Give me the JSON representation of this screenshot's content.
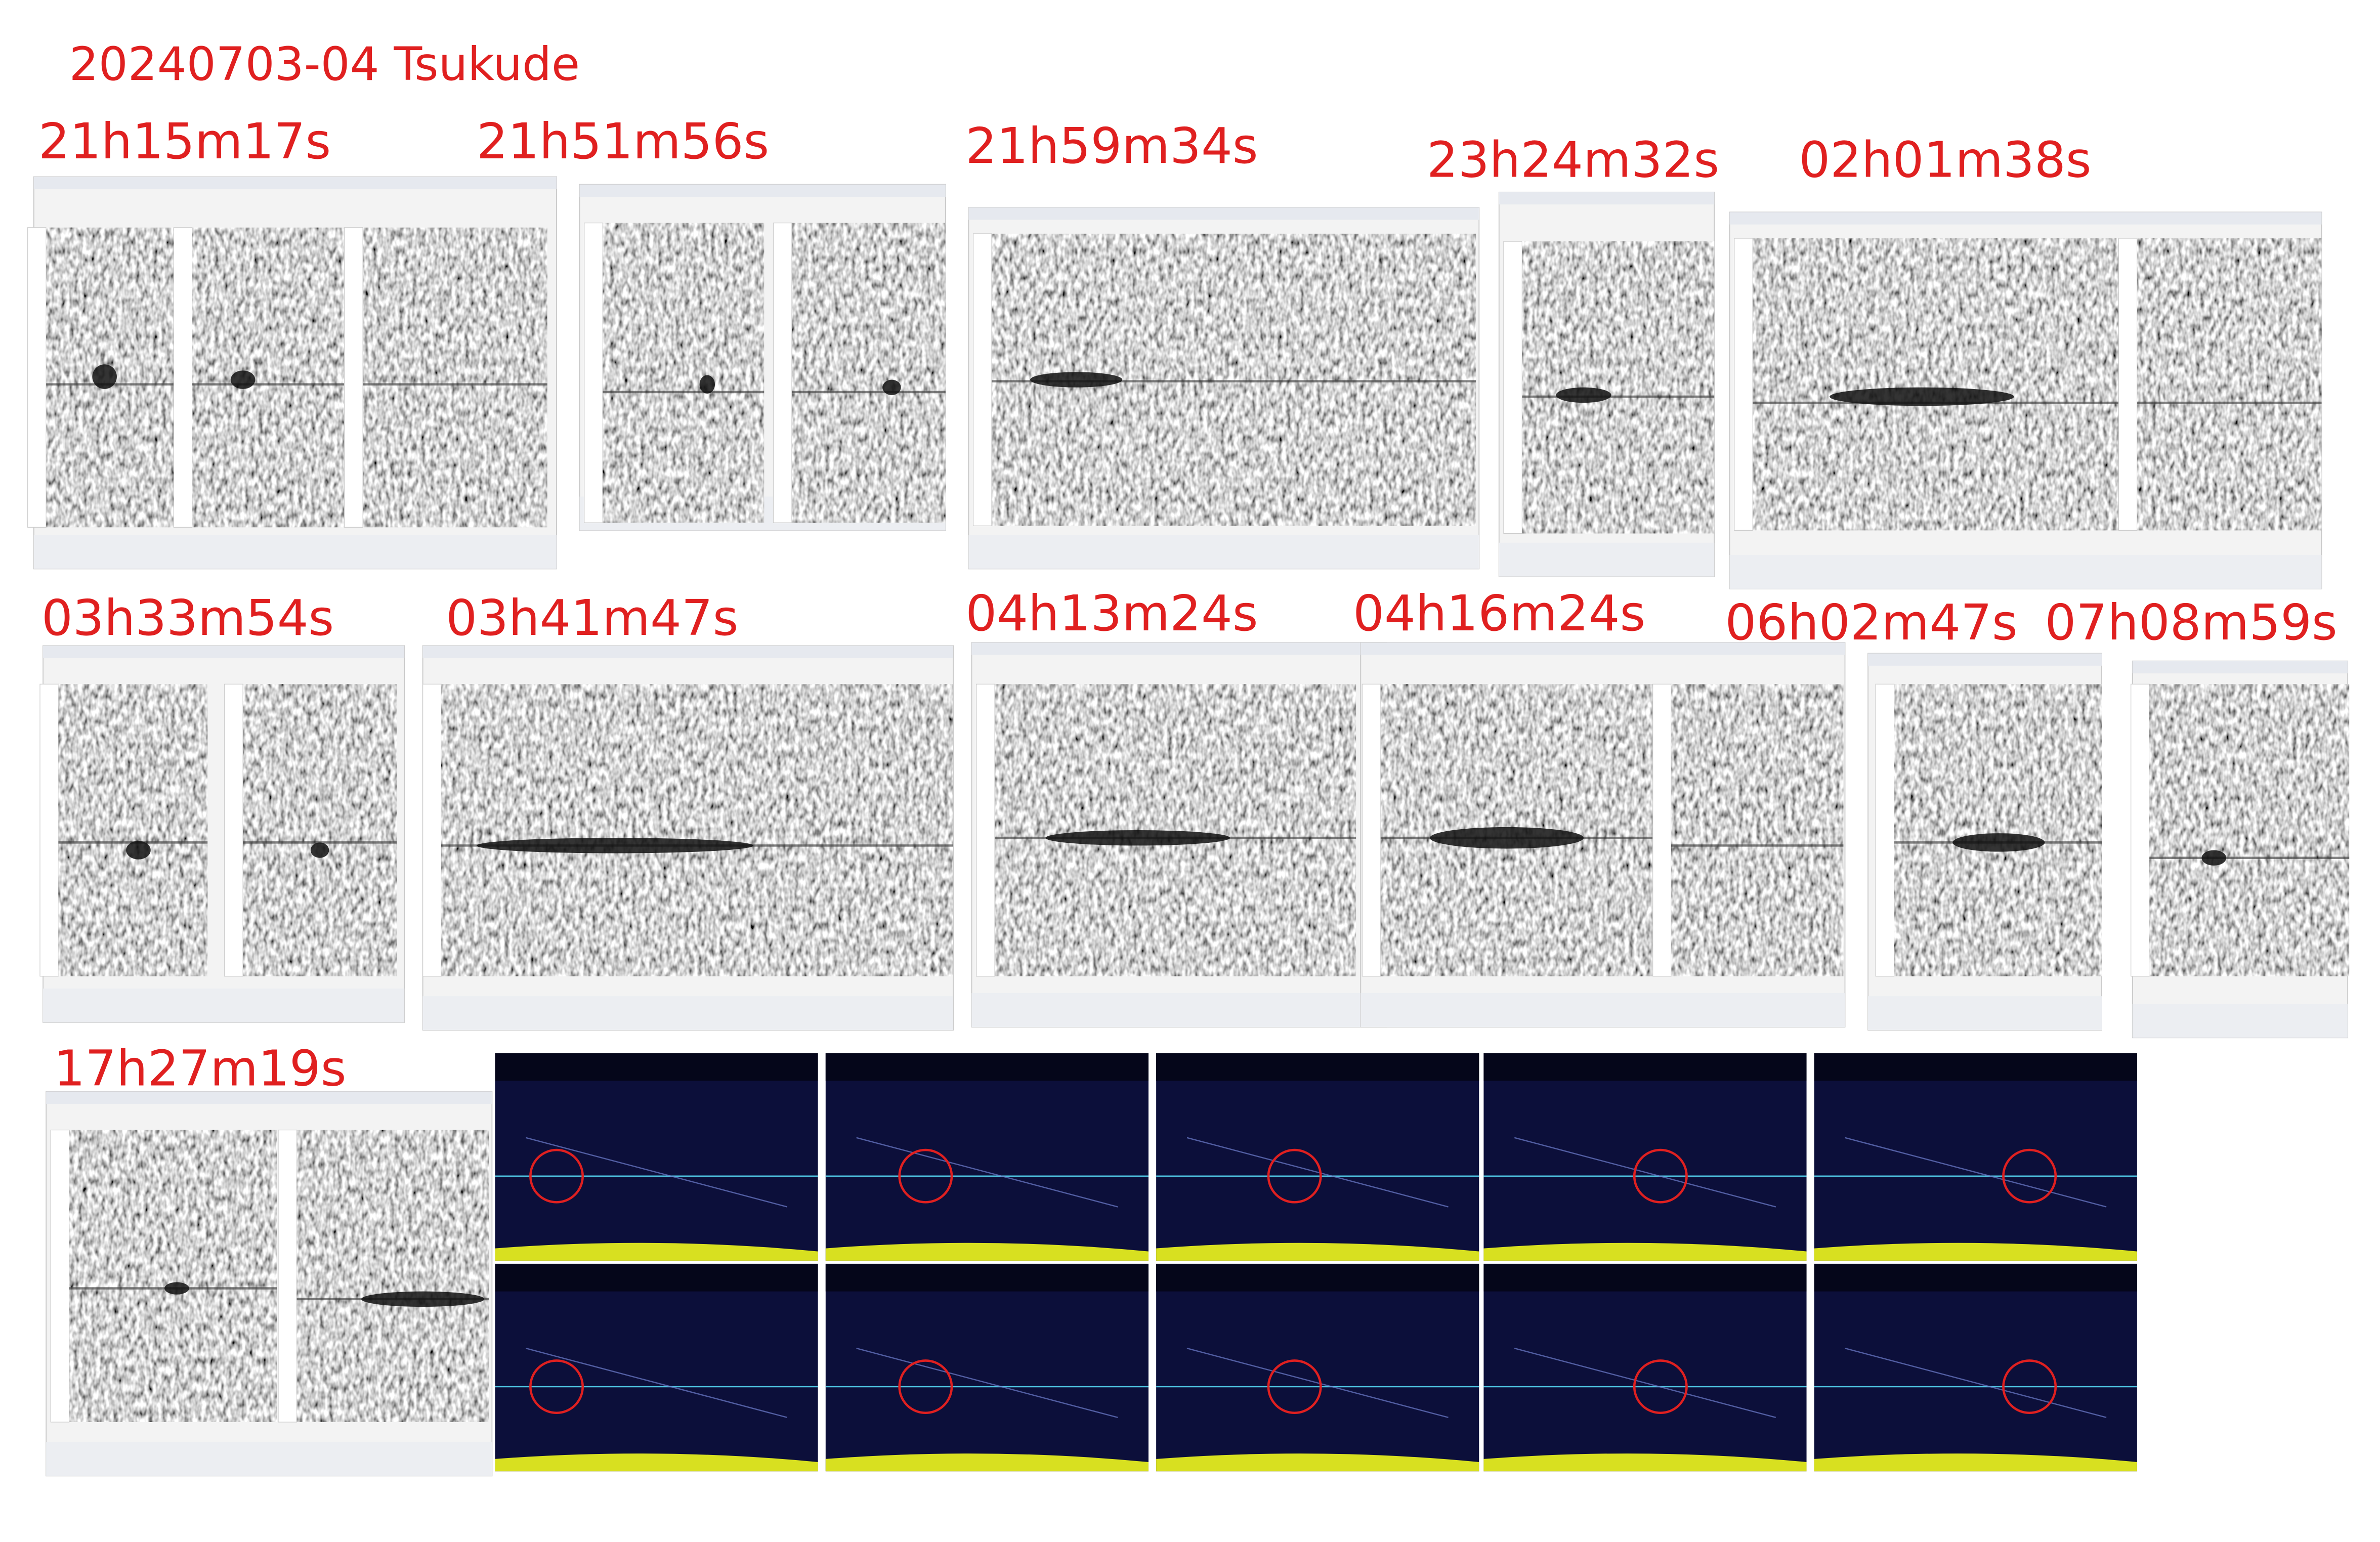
{
  "header": {
    "title": "20240703-04  Tsukude"
  },
  "captures": [
    {
      "time": "21h15m17s"
    },
    {
      "time": "21h51m56s"
    },
    {
      "time": "21h59m34s"
    },
    {
      "time": "23h24m32s"
    },
    {
      "time": "02h01m38s"
    },
    {
      "time": "03h33m54s"
    },
    {
      "time": "03h41m47s"
    },
    {
      "time": "04h13m24s"
    },
    {
      "time": "04h16m24s"
    },
    {
      "time": "06h02m47s"
    },
    {
      "time": "07h08m59s"
    },
    {
      "time": "17h27m19s"
    }
  ]
}
